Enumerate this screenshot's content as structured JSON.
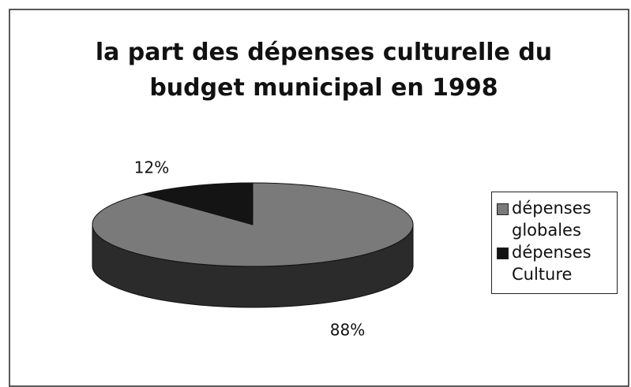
{
  "chart_data": {
    "type": "pie",
    "title": "la part des dépenses culturelle du budget municipal en 1998",
    "categories": [
      "dépenses globales",
      "dépenses Culture"
    ],
    "values": [
      88,
      12
    ],
    "value_labels": [
      "88%",
      "12%"
    ],
    "colors": [
      "#7a7a7a",
      "#141414"
    ],
    "legend": "right"
  }
}
